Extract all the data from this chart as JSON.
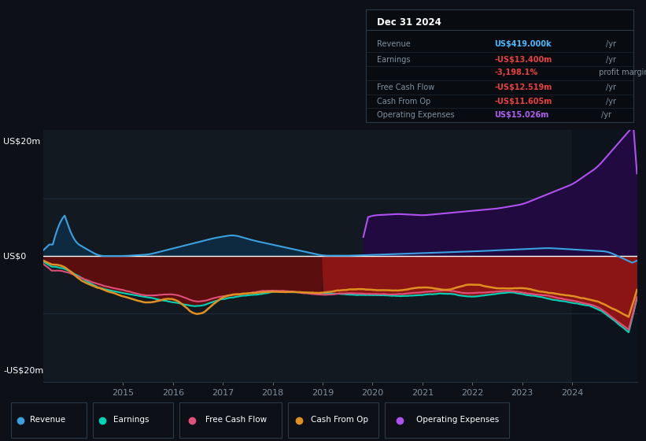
{
  "bg_color": "#0d1117",
  "plot_bg_color": "#131920",
  "grid_color": "#253545",
  "zero_line_color": "#ffffff",
  "label_color": "#8090a0",
  "ylabel_20": "US$20m",
  "ylabel_0": "US$0",
  "ylabel_neg20": "-US$20m",
  "ylim": [
    -22,
    22
  ],
  "year_start": 2013.4,
  "year_end": 2025.3,
  "xticks": [
    2015,
    2016,
    2017,
    2018,
    2019,
    2020,
    2021,
    2022,
    2023,
    2024
  ],
  "revenue_color": "#3ba0e0",
  "earnings_color": "#00d4b8",
  "fcf_color": "#e0507a",
  "cashfromop_color": "#e09020",
  "opex_color": "#b050f0",
  "revenue_fill_color": "#0d2a40",
  "earnings_fill_pre_color": "#5a0e0e",
  "earnings_fill_post_color": "#8b1515",
  "opex_fill_color": "#200a40",
  "tooltip_bg": "#080c10",
  "tooltip_border": "#2a3848",
  "tooltip_title": "Dec 31 2024",
  "legend_items": [
    {
      "label": "Revenue",
      "color": "#3ba0e0"
    },
    {
      "label": "Earnings",
      "color": "#00d4b8"
    },
    {
      "label": "Free Cash Flow",
      "color": "#e0507a"
    },
    {
      "label": "Cash From Op",
      "color": "#e09020"
    },
    {
      "label": "Operating Expenses",
      "color": "#b050f0"
    }
  ]
}
